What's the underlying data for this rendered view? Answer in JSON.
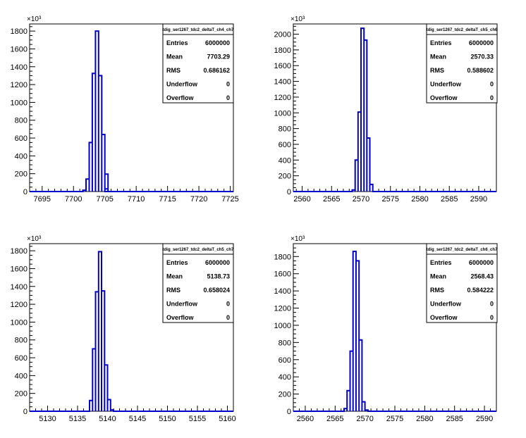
{
  "chart_data": [
    {
      "type": "bar",
      "title": "tdig_ser1267_tdc2_deltaT_ch4_ch7",
      "xlim": [
        7693,
        7725.5
      ],
      "ylim": [
        0,
        1880
      ],
      "xticks": [
        7695,
        7700,
        7705,
        7710,
        7715,
        7720,
        7725
      ],
      "yticks": [
        0,
        200,
        400,
        600,
        800,
        1000,
        1200,
        1400,
        1600,
        1800
      ],
      "y_exponent_label": "×10³",
      "bin_width": 0.5,
      "x": [
        7701.5,
        7702.0,
        7702.5,
        7703.0,
        7703.5,
        7704.0,
        7704.5,
        7705.0
      ],
      "values": [
        15,
        140,
        550,
        1325,
        1800,
        1300,
        640,
        195
      ],
      "tail_bins": [
        [
          7705.0,
          30
        ]
      ],
      "stats": {
        "entries_label": "Entries",
        "entries": "6000000",
        "mean_label": "Mean",
        "mean": "7703.29",
        "rms_label": "RMS",
        "rms": "0.686162",
        "underflow_label": "Underflow",
        "underflow": "0",
        "overflow_label": "Overflow",
        "overflow": "0"
      }
    },
    {
      "type": "bar",
      "title": "tdig_ser1267_tdc2_deltaT_ch5_ch6",
      "xlim": [
        2558.5,
        2593
      ],
      "ylim": [
        0,
        2130
      ],
      "xticks": [
        2560,
        2565,
        2570,
        2575,
        2580,
        2585,
        2590
      ],
      "yticks": [
        0,
        200,
        400,
        600,
        800,
        1000,
        1200,
        1400,
        1600,
        1800,
        2000
      ],
      "y_exponent_label": "×10³",
      "bin_width": 0.5,
      "x": [
        2568.5,
        2569.0,
        2569.5,
        2570.0,
        2570.5,
        2571.0,
        2571.5
      ],
      "values": [
        20,
        400,
        1010,
        2075,
        1925,
        680,
        90
      ],
      "tail_bins": [],
      "stats": {
        "entries_label": "Entries",
        "entries": "6000000",
        "mean_label": "Mean",
        "mean": "2570.33",
        "rms_label": "RMS",
        "rms": "0.588602",
        "underflow_label": "Underflow",
        "underflow": "0",
        "overflow_label": "Overflow",
        "overflow": "0"
      }
    },
    {
      "type": "bar",
      "title": "tdig_ser1267_tdc2_deltaT_ch5_ch7",
      "xlim": [
        5127,
        5161
      ],
      "ylim": [
        0,
        1880
      ],
      "xticks": [
        5130,
        5135,
        5140,
        5145,
        5150,
        5155,
        5160
      ],
      "yticks": [
        0,
        200,
        400,
        600,
        800,
        1000,
        1200,
        1400,
        1600,
        1800
      ],
      "y_exponent_label": "×10³",
      "bin_width": 0.5,
      "x": [
        5137.0,
        5137.5,
        5138.0,
        5138.5,
        5139.0,
        5139.5,
        5140.0
      ],
      "values": [
        120,
        700,
        1340,
        1790,
        1350,
        520,
        130
      ],
      "tail_bins": [
        [
          5140.5,
          15
        ]
      ],
      "stats": {
        "entries_label": "Entries",
        "entries": "6000000",
        "mean_label": "Mean",
        "mean": "5138.73",
        "rms_label": "RMS",
        "rms": "0.658024",
        "underflow_label": "Underflow",
        "underflow": "0",
        "overflow_label": "Overflow",
        "overflow": "0"
      }
    },
    {
      "type": "bar",
      "title": "tdig_ser1267_tdc2_deltaT_ch6_ch7",
      "xlim": [
        2558,
        2592
      ],
      "ylim": [
        0,
        1950
      ],
      "xticks": [
        2560,
        2565,
        2570,
        2575,
        2580,
        2585,
        2590
      ],
      "yticks": [
        0,
        200,
        400,
        600,
        800,
        1000,
        1200,
        1400,
        1600,
        1800
      ],
      "y_exponent_label": "×10³",
      "bin_width": 0.5,
      "x": [
        2566.5,
        2567.0,
        2567.5,
        2568.0,
        2568.5,
        2569.0,
        2569.5
      ],
      "values": [
        30,
        240,
        700,
        1860,
        1750,
        830,
        110
      ],
      "tail_bins": [
        [
          2570.0,
          15
        ]
      ],
      "stats": {
        "entries_label": "Entries",
        "entries": "6000000",
        "mean_label": "Mean",
        "mean": "2568.43",
        "rms_label": "RMS",
        "rms": "0.584222",
        "underflow_label": "Underflow",
        "underflow": "0",
        "overflow_label": "Overflow",
        "overflow": "0"
      }
    }
  ],
  "colors": {
    "histogram_line": "#0000cc",
    "axis": "#000000",
    "background": "#ffffff"
  }
}
